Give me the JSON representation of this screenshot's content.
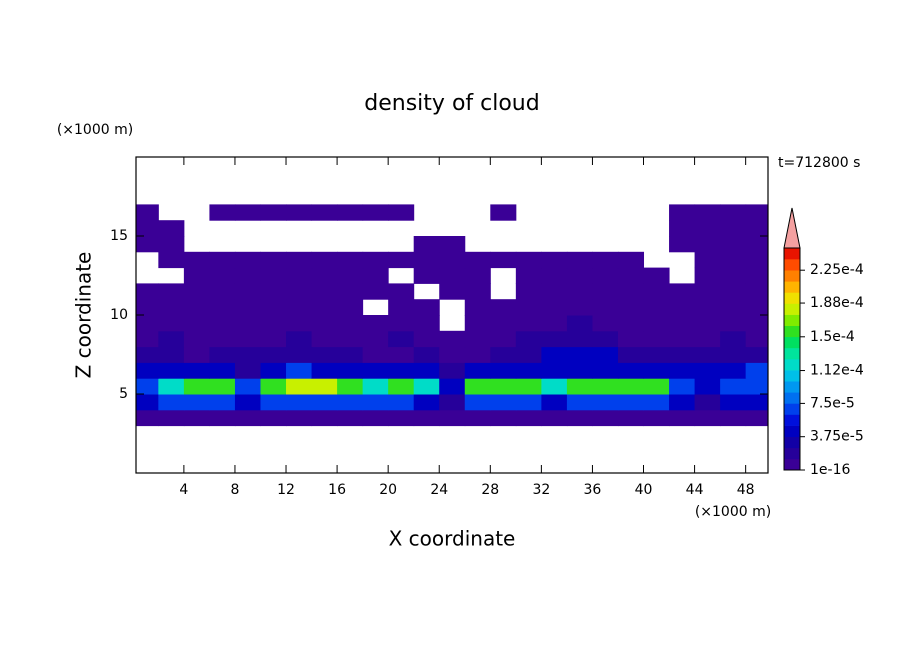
{
  "chart_data": {
    "type": "contour",
    "title": "density of cloud",
    "x_label": "X coordinate",
    "y_label": "Z coordinate",
    "x_unit": "(×1000 m)",
    "y_unit": "(×1000 m)",
    "annotation": "t=712800 s",
    "xlim": [
      0.25,
      49.75
    ],
    "ylim": [
      0,
      20
    ],
    "xticks": [
      4,
      8,
      12,
      16,
      20,
      24,
      28,
      32,
      36,
      40,
      44,
      48
    ],
    "yticks": [
      5,
      10,
      15
    ],
    "x": [
      1,
      3,
      5,
      7,
      9,
      11,
      13,
      15,
      17,
      19,
      21,
      23,
      25,
      27,
      29,
      31,
      33,
      35,
      37,
      39,
      41,
      43,
      45,
      47,
      49
    ],
    "y": [
      3.5,
      4.5,
      5.5,
      6.5,
      7.5,
      8.5,
      9.5,
      10.5,
      11.5,
      12.5,
      13.5,
      14.5,
      15.5,
      16.5
    ],
    "z": [
      [
        1e-16,
        1e-16,
        1e-16,
        1e-16,
        1e-16,
        1e-16,
        1e-16,
        1e-16,
        1e-16,
        1e-16,
        1e-16,
        1e-16,
        1e-16,
        1e-16,
        1e-16,
        1e-16,
        1e-16,
        1e-16,
        1e-16,
        1e-16,
        1e-16,
        1e-16,
        1e-16,
        1e-16,
        1e-16
      ],
      [
        4e-05,
        7e-05,
        7e-05,
        7e-05,
        4e-05,
        7e-05,
        7e-05,
        7e-05,
        7e-05,
        7e-05,
        7e-05,
        4e-05,
        2e-05,
        7e-05,
        7e-05,
        7e-05,
        4e-05,
        7e-05,
        7e-05,
        7e-05,
        7e-05,
        4e-05,
        2e-05,
        4e-05,
        4e-05
      ],
      [
        7e-05,
        0.00012,
        0.00016,
        0.00016,
        7e-05,
        0.00016,
        0.00018,
        0.00018,
        0.00016,
        0.00012,
        0.00016,
        0.00012,
        4e-05,
        0.00016,
        0.00016,
        0.00016,
        0.00012,
        0.00016,
        0.00016,
        0.00016,
        0.00016,
        7e-05,
        4e-05,
        7e-05,
        7e-05
      ],
      [
        4e-05,
        4e-05,
        4e-05,
        4e-05,
        2e-05,
        4e-05,
        7e-05,
        4e-05,
        4e-05,
        4e-05,
        4e-05,
        4e-05,
        2e-05,
        4e-05,
        4e-05,
        4e-05,
        4e-05,
        4e-05,
        4e-05,
        4e-05,
        4e-05,
        4e-05,
        4e-05,
        4e-05,
        7e-05
      ],
      [
        2e-05,
        2e-05,
        1e-16,
        2e-05,
        2e-05,
        2e-05,
        2e-05,
        2e-05,
        2e-05,
        1e-16,
        1e-16,
        2e-05,
        1e-16,
        1e-16,
        2e-05,
        2e-05,
        4e-05,
        4e-05,
        4e-05,
        2e-05,
        2e-05,
        2e-05,
        2e-05,
        2e-05,
        2e-05
      ],
      [
        1e-16,
        2e-05,
        1e-16,
        1e-16,
        1e-16,
        1e-16,
        2e-05,
        1e-16,
        1e-16,
        1e-16,
        2e-05,
        1e-16,
        1e-16,
        1e-16,
        1e-16,
        2e-05,
        2e-05,
        2e-05,
        2e-05,
        1e-16,
        1e-16,
        1e-16,
        1e-16,
        2e-05,
        1e-16
      ],
      [
        1e-16,
        1e-16,
        1e-16,
        1e-16,
        1e-16,
        1e-16,
        1e-16,
        1e-16,
        1e-16,
        1e-16,
        1e-16,
        1e-16,
        null,
        1e-16,
        1e-16,
        1e-16,
        1e-16,
        2e-05,
        1e-16,
        1e-16,
        1e-16,
        1e-16,
        1e-16,
        1e-16,
        1e-16
      ],
      [
        1e-16,
        1e-16,
        1e-16,
        1e-16,
        1e-16,
        1e-16,
        1e-16,
        1e-16,
        1e-16,
        null,
        1e-16,
        1e-16,
        null,
        1e-16,
        1e-16,
        1e-16,
        1e-16,
        1e-16,
        1e-16,
        1e-16,
        1e-16,
        1e-16,
        1e-16,
        1e-16,
        1e-16
      ],
      [
        1e-16,
        1e-16,
        1e-16,
        1e-16,
        1e-16,
        1e-16,
        1e-16,
        1e-16,
        1e-16,
        1e-16,
        1e-16,
        null,
        1e-16,
        1e-16,
        null,
        1e-16,
        1e-16,
        1e-16,
        1e-16,
        1e-16,
        1e-16,
        1e-16,
        1e-16,
        1e-16,
        1e-16
      ],
      [
        null,
        null,
        1e-16,
        1e-16,
        1e-16,
        1e-16,
        1e-16,
        1e-16,
        1e-16,
        1e-16,
        null,
        1e-16,
        1e-16,
        1e-16,
        null,
        1e-16,
        1e-16,
        1e-16,
        1e-16,
        1e-16,
        1e-16,
        null,
        1e-16,
        1e-16,
        1e-16
      ],
      [
        null,
        1e-16,
        1e-16,
        1e-16,
        1e-16,
        1e-16,
        1e-16,
        1e-16,
        1e-16,
        1e-16,
        1e-16,
        1e-16,
        1e-16,
        1e-16,
        1e-16,
        1e-16,
        1e-16,
        1e-16,
        1e-16,
        1e-16,
        null,
        null,
        1e-16,
        1e-16,
        1e-16
      ],
      [
        1e-16,
        1e-16,
        null,
        null,
        null,
        null,
        null,
        null,
        null,
        null,
        null,
        1e-16,
        1e-16,
        null,
        null,
        null,
        null,
        null,
        null,
        null,
        null,
        1e-16,
        1e-16,
        1e-16,
        1e-16
      ],
      [
        1e-16,
        1e-16,
        null,
        null,
        null,
        null,
        null,
        null,
        null,
        null,
        null,
        null,
        null,
        null,
        null,
        null,
        null,
        null,
        null,
        null,
        null,
        1e-16,
        1e-16,
        1e-16,
        1e-16
      ],
      [
        1e-16,
        null,
        null,
        1e-16,
        1e-16,
        1e-16,
        1e-16,
        1e-16,
        1e-16,
        1e-16,
        1e-16,
        null,
        null,
        null,
        1e-16,
        null,
        null,
        null,
        null,
        null,
        null,
        1e-16,
        1e-16,
        1e-16,
        1e-16
      ]
    ],
    "clim": [
      1e-16,
      0.00025
    ],
    "colors": [
      "#3a0096",
      "#26009a",
      "#1200a6",
      "#0000c0",
      "#0010dc",
      "#0040ec",
      "#0070f0",
      "#0098f0",
      "#00c0e8",
      "#00dcc8",
      "#00e49c",
      "#00e060",
      "#30e020",
      "#80ec00",
      "#c8f000",
      "#f0e000",
      "#ffb400",
      "#ff8000",
      "#ff4c00",
      "#e81400"
    ],
    "extend_color": "#f4a0a0",
    "cbar_ticks": [
      1e-16,
      {
        "value": 3.75e-05,
        "label": "3.75e-5"
      },
      {
        "value": 7.5e-05,
        "label": "7.5e-5"
      },
      {
        "value": 0.000112,
        "label": "1.12e-4"
      },
      {
        "value": 0.00015,
        "label": "1.5e-4"
      },
      {
        "value": 0.000188,
        "label": "1.88e-4"
      },
      {
        "value": 0.000225,
        "label": "2.25e-4"
      }
    ]
  }
}
